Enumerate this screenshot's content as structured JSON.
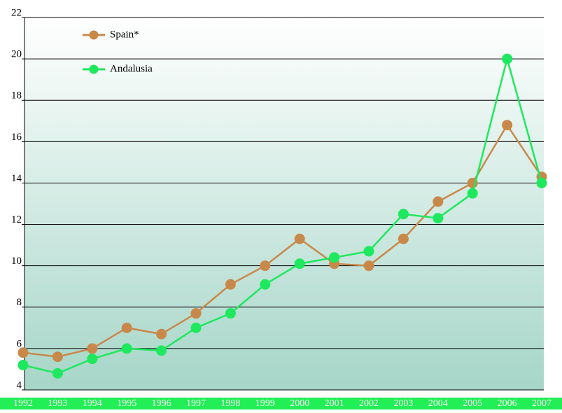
{
  "chart_data": {
    "type": "line",
    "categories": [
      "1992",
      "1993",
      "1994",
      "1995",
      "1996",
      "1997",
      "1998",
      "1999",
      "2000",
      "2001",
      "2002",
      "2003",
      "2004",
      "2005",
      "2006",
      "2007"
    ],
    "series": [
      {
        "name": "Spain*",
        "color": "#c8884a",
        "values": [
          5.8,
          5.6,
          6.0,
          7.0,
          6.7,
          7.7,
          9.1,
          10.0,
          11.3,
          10.1,
          10.0,
          11.3,
          13.1,
          14.0,
          16.8,
          14.3
        ]
      },
      {
        "name": "Andalusia",
        "color": "#1ee85e",
        "values": [
          5.2,
          4.8,
          5.5,
          6.0,
          5.9,
          7.0,
          7.7,
          9.1,
          10.1,
          10.4,
          10.7,
          12.5,
          12.3,
          13.5,
          20.0,
          14.0
        ]
      }
    ],
    "ylim": [
      4,
      22
    ],
    "yticks": [
      4,
      6,
      8,
      10,
      12,
      14,
      16,
      18,
      20,
      22
    ],
    "grid": true
  }
}
